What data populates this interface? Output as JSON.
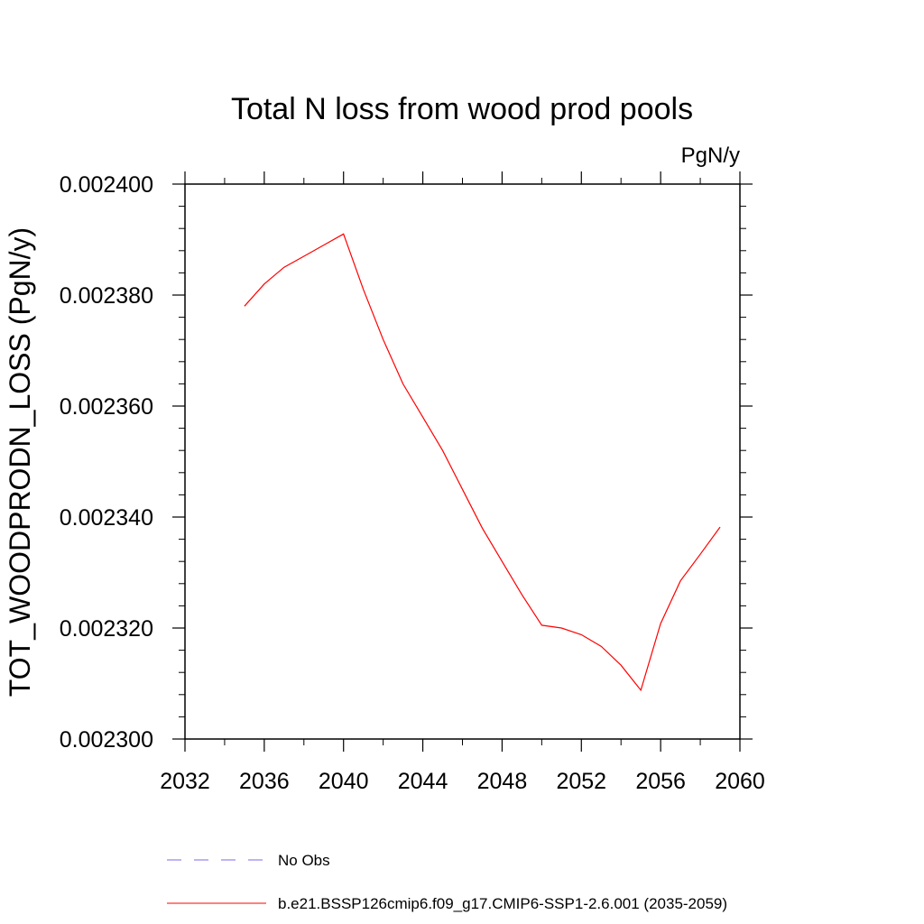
{
  "chart_data": {
    "type": "line",
    "title": "Total N loss from wood prod pools",
    "units_label": "PgN/y",
    "ylabel": "TOT_WOODPRODN_LOSS  (PgN/y)",
    "xlabel": "",
    "xlim": [
      2032,
      2060
    ],
    "ylim": [
      0.0023,
      0.0024
    ],
    "x_ticks": [
      2032,
      2036,
      2040,
      2044,
      2048,
      2052,
      2056,
      2060
    ],
    "x_tick_labels": [
      "2032",
      "2036",
      "2040",
      "2044",
      "2048",
      "2052",
      "2056",
      "2060"
    ],
    "y_ticks": [
      0.0023,
      0.00232,
      0.00234,
      0.00236,
      0.00238,
      0.0024
    ],
    "y_tick_labels": [
      "0.002300",
      "0.002320",
      "0.002340",
      "0.002360",
      "0.002380",
      "0.002400"
    ],
    "grid": false,
    "legend_position": "bottom",
    "series": [
      {
        "name": "No Obs",
        "color": "#7b68ee",
        "dash": "dashed",
        "x": [],
        "y": []
      },
      {
        "name": "b.e21.BSSP126cmip6.f09_g17.CMIP6-SSP1-2.6.001 (2035-2059)",
        "color": "#ff0000",
        "dash": "solid",
        "x": [
          2035,
          2036,
          2037,
          2038,
          2039,
          2040,
          2041,
          2042,
          2043,
          2044,
          2045,
          2046,
          2047,
          2048,
          2049,
          2050,
          2051,
          2052,
          2053,
          2054,
          2055,
          2056,
          2057,
          2058,
          2059
        ],
        "y": [
          0.002378,
          0.002382,
          0.002385,
          0.002387,
          0.002389,
          0.002391,
          0.002381,
          0.002372,
          0.002364,
          0.002358,
          0.002352,
          0.002345,
          0.002338,
          0.002332,
          0.002326,
          0.0023205,
          0.00232,
          0.0023188,
          0.0023167,
          0.0023133,
          0.0023088,
          0.0023208,
          0.0023285,
          0.0023333,
          0.0023382
        ]
      }
    ]
  }
}
